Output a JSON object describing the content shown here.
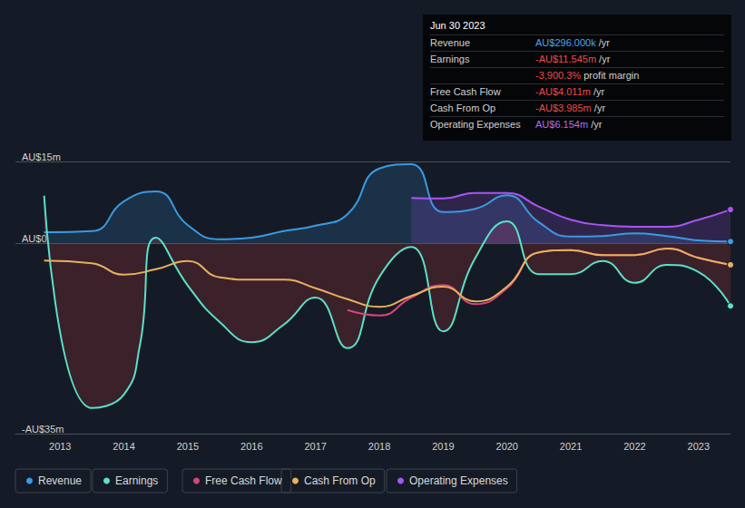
{
  "chart_data": {
    "type": "line",
    "xlim": [
      2012.3,
      2023.5
    ],
    "xticks": [
      2013,
      2014,
      2015,
      2016,
      2017,
      2018,
      2019,
      2020,
      2021,
      2022,
      2023
    ],
    "ylim": [
      -35,
      15
    ],
    "yticks": [
      {
        "value": 15,
        "label": "AU$15m"
      },
      {
        "value": 0,
        "label": "AU$0"
      },
      {
        "value": -35,
        "label": "-AU$35m"
      }
    ],
    "grid": true,
    "legend": "bottom",
    "series": [
      {
        "name": "Revenue",
        "color": "#3b9ae1",
        "type": "area",
        "x": [
          2012.75,
          2013.5,
          2014,
          2014.5,
          2015,
          2015.5,
          2016,
          2016.5,
          2017,
          2017.5,
          2018,
          2018.5,
          2019,
          2019.5,
          2020,
          2020.5,
          2021,
          2021.5,
          2022,
          2022.5,
          2023,
          2023.5
        ],
        "values": [
          2,
          2.2,
          7.7,
          9.5,
          3.3,
          0.7,
          1,
          2.2,
          3.2,
          5.3,
          13.7,
          14.5,
          5.7,
          6.3,
          8.8,
          3.8,
          1.2,
          1.3,
          1.8,
          1.3,
          0.5,
          0.296
        ]
      },
      {
        "name": "Earnings",
        "color": "#5ce0c6",
        "type": "area",
        "x": [
          2012.75,
          2013.5,
          2014,
          2014.25,
          2014.5,
          2015,
          2015.5,
          2016,
          2016.5,
          2017,
          2017.5,
          2018,
          2018.5,
          2019,
          2019.5,
          2020,
          2020.5,
          2021,
          2021.5,
          2022,
          2022.5,
          2023,
          2023.5
        ],
        "values": [
          8.7,
          -30.3,
          -27.8,
          -18.7,
          1,
          -7.8,
          -14.5,
          -18.2,
          -15,
          -10,
          -19.3,
          -6.2,
          -0.7,
          -16.2,
          -2.8,
          4,
          -5.7,
          -5.7,
          -3.3,
          -7.3,
          -4,
          -5.3,
          -11.545
        ]
      },
      {
        "name": "Free Cash Flow",
        "color": "#d6457a",
        "type": "line",
        "x": [
          2017.5,
          2018,
          2018.5,
          2019,
          2019.5,
          2020,
          2020.5,
          2021,
          2021.5,
          2022,
          2022.5,
          2023,
          2023.5
        ],
        "values": [
          -12.3,
          -13.3,
          -10,
          -7.7,
          -11.2,
          -8.3,
          -1.7,
          -1.3,
          -2.2,
          -2.2,
          -1,
          -2.7,
          -4.011
        ]
      },
      {
        "name": "Cash From Op",
        "color": "#e8b060",
        "type": "line",
        "x": [
          2012.75,
          2013.5,
          2014,
          2014.5,
          2015,
          2015.5,
          2016,
          2016.5,
          2017,
          2017.5,
          2018,
          2018.5,
          2019,
          2019.5,
          2020,
          2020.5,
          2021,
          2021.5,
          2022,
          2022.5,
          2023,
          2023.5
        ],
        "values": [
          -3.2,
          -3.7,
          -5.8,
          -4.8,
          -3.3,
          -6.3,
          -6.7,
          -6.7,
          -8.3,
          -10.3,
          -11.7,
          -9.7,
          -8,
          -10.7,
          -8,
          -1.7,
          -1.3,
          -2.2,
          -2.2,
          -1,
          -2.7,
          -3.985
        ]
      },
      {
        "name": "Operating Expenses",
        "color": "#a855f7",
        "type": "area",
        "x": [
          2018.5,
          2019,
          2019.5,
          2020,
          2020.5,
          2021,
          2021.5,
          2022,
          2022.5,
          2023,
          2023.5
        ],
        "values": [
          8.3,
          8.2,
          9.2,
          9.2,
          6.7,
          4.3,
          3.3,
          3,
          3,
          4.3,
          6.154
        ]
      }
    ]
  },
  "panel": {
    "date": "Jun 30 2023",
    "rows": [
      {
        "label": "Revenue",
        "value": "AU$296.000k",
        "suffix": " /yr",
        "color": "#4aa3f0"
      },
      {
        "label": "Earnings",
        "value": "-AU$11.545m",
        "suffix": " /yr",
        "color": "#f04a4a"
      },
      {
        "value": "-3,900.3%",
        "suffix": " profit margin",
        "color": "#f04a4a"
      },
      {
        "label": "Free Cash Flow",
        "value": "-AU$4.011m",
        "suffix": " /yr",
        "color": "#f04a4a"
      },
      {
        "label": "Cash From Op",
        "value": "-AU$3.985m",
        "suffix": " /yr",
        "color": "#f04a4a"
      },
      {
        "label": "Operating Expenses",
        "value": "AU$6.154m",
        "suffix": " /yr",
        "color": "#b06cf0"
      }
    ]
  }
}
